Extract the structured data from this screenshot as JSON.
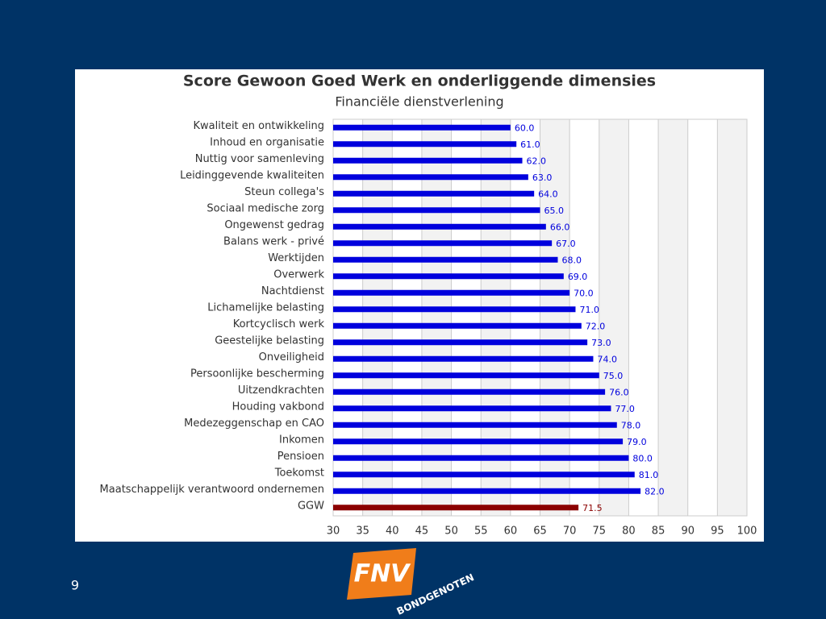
{
  "chart_data": {
    "type": "bar",
    "orientation": "horizontal",
    "title": "Score Gewoon Goed Werk en onderliggende dimensies",
    "subtitle": "Financiële dienstverlening",
    "categories": [
      "Kwaliteit en ontwikkeling",
      "Inhoud en organisatie",
      "Nuttig voor samenleving",
      "Leidinggevende kwaliteiten",
      "Steun collega's",
      "Sociaal medische zorg",
      "Ongewenst gedrag",
      "Balans werk - privé",
      "Werktijden",
      "Overwerk",
      "Nachtdienst",
      "Lichamelijke belasting",
      "Kortcyclisch werk",
      "Geestelijke belasting",
      "Onveiligheid",
      "Persoonlijke bescherming",
      "Uitzendkrachten",
      "Houding vakbond",
      "Medezeggenschap en CAO",
      "Inkomen",
      "Pensioen",
      "Toekomst",
      "Maatschappelijk verantwoord ondernemen",
      "GGW"
    ],
    "values": [
      60,
      61,
      62,
      63,
      64,
      65,
      66,
      67,
      68,
      69,
      70,
      71,
      72,
      73,
      74,
      75,
      76,
      77,
      78,
      79,
      80,
      81,
      82,
      71.5
    ],
    "value_labels": [
      "60.0",
      "61.0",
      "62.0",
      "63.0",
      "64.0",
      "65.0",
      "66.0",
      "67.0",
      "68.0",
      "69.0",
      "70.0",
      "71.0",
      "72.0",
      "73.0",
      "74.0",
      "75.0",
      "76.0",
      "77.0",
      "78.0",
      "79.0",
      "80.0",
      "81.0",
      "82.0",
      "71.5"
    ],
    "colors": [
      "#0000dd",
      "#0000dd",
      "#0000dd",
      "#0000dd",
      "#0000dd",
      "#0000dd",
      "#0000dd",
      "#0000dd",
      "#0000dd",
      "#0000dd",
      "#0000dd",
      "#0000dd",
      "#0000dd",
      "#0000dd",
      "#0000dd",
      "#0000dd",
      "#0000dd",
      "#0000dd",
      "#0000dd",
      "#0000dd",
      "#0000dd",
      "#0000dd",
      "#0000dd",
      "#8b0000"
    ],
    "xlim": [
      30,
      100
    ],
    "xticks": [
      30,
      35,
      40,
      45,
      50,
      55,
      60,
      65,
      70,
      75,
      80,
      85,
      90,
      95,
      100
    ],
    "grid": true
  },
  "slide": {
    "page_number": "9",
    "logo": "FNV",
    "logo_subtitle": "BONDGENOTEN"
  }
}
